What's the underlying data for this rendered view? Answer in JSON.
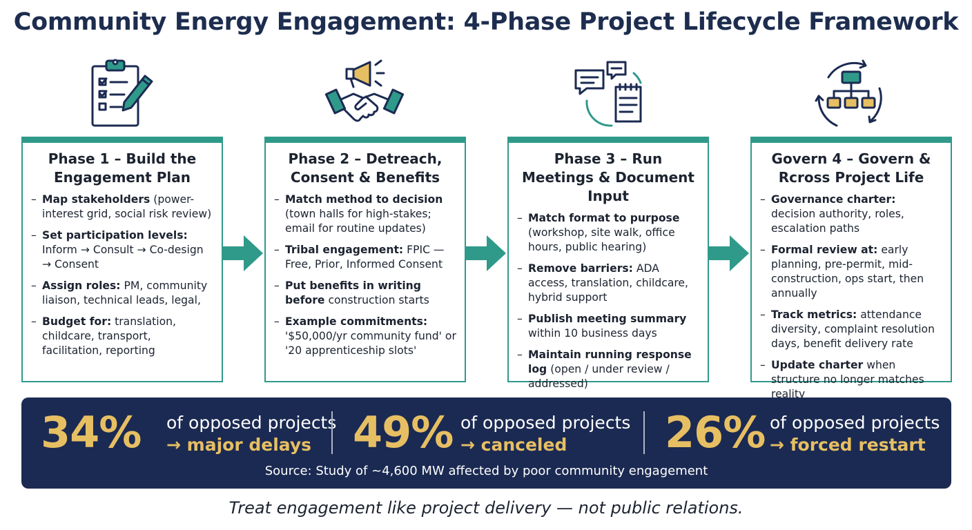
{
  "title": "Community Energy Engagement: 4-Phase Project Lifecycle Framework",
  "colors": {
    "teal": "#2f9a8a",
    "navy": "#1b2a52",
    "gold": "#e7bf63",
    "title_navy": "#1d2d4f"
  },
  "phases": [
    {
      "icon": "clipboard-checklist-pencil-icon",
      "title": "Phase 1 – Build the Engagement Plan",
      "items": [
        {
          "bold": "Map stakeholders",
          "text": " (power-interest grid, social risk review)"
        },
        {
          "bold": "Set participation levels:",
          "text": " Inform → Consult → Co-design → Consent"
        },
        {
          "bold": "Assign roles:",
          "text": " PM, community liaison, technical leads, legal,"
        },
        {
          "bold": "Budget for:",
          "text": " translation, childcare, transport, facilitation, reporting"
        }
      ]
    },
    {
      "icon": "megaphone-handshake-icon",
      "title": "Phase 2 – Detreach, Consent & Benefits",
      "items": [
        {
          "bold": "Match method to decision",
          "text": " (town halls for high-stakes; email for routine updates)"
        },
        {
          "bold": "Tribal engagement:",
          "text": " FPIC — Free, Prior, Informed Consent"
        },
        {
          "bold": "Put benefits in writing before",
          "text": " construction starts"
        },
        {
          "bold": "Example commitments:",
          "text": " '$50,000/yr community fund' or '20 apprenticeship slots'"
        }
      ]
    },
    {
      "icon": "chat-bubbles-notepad-icon",
      "title": "Phase 3 – Run Meetings & Document Input",
      "items": [
        {
          "bold": "Match format to purpose",
          "text": " (workshop, site walk, office hours, public hearing)"
        },
        {
          "bold": "Remove barriers:",
          "text": " ADA access, translation, childcare, hybrid support"
        },
        {
          "bold": "Publish meeting summary",
          "text": " within 10 business days"
        },
        {
          "bold": "Maintain running response log",
          "text": " (open / under review / addressed)"
        }
      ]
    },
    {
      "icon": "org-chart-cycle-icon",
      "title": "Govern 4 – Govern & Rcross Project Life",
      "items": [
        {
          "bold": "Governance charter:",
          "text": " decision authority, roles, escalation paths"
        },
        {
          "bold": "Formal review at:",
          "text": " early planning, pre-permit, mid-construction, ops start, then annually"
        },
        {
          "bold": "Track metrics:",
          "text": " attendance diversity, complaint resolution days, benefit delivery rate"
        },
        {
          "bold": "Update charter",
          "text": " when structure no longer matches reality"
        }
      ]
    }
  ],
  "stats": [
    {
      "value": "34%",
      "line1": "of opposed projects",
      "line2": "→ major delays"
    },
    {
      "value": "49%",
      "line1": "of opposed projects",
      "line2": "→ canceled"
    },
    {
      "value": "26%",
      "line1": "of opposed projects",
      "line2": "→ forced restart"
    }
  ],
  "source": "Source: Study of ~4,600 MW affected by poor community engagement",
  "footer": "Treat engagement like project delivery — not public relations."
}
